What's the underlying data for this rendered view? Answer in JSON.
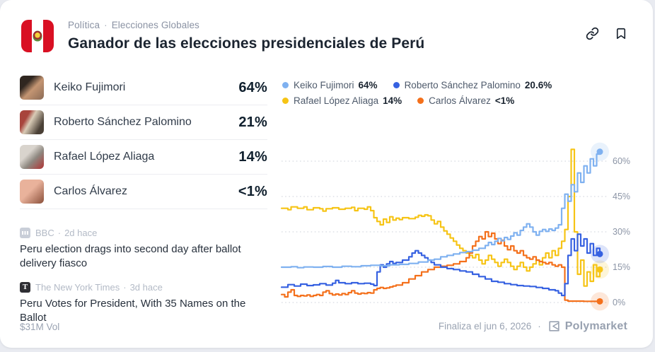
{
  "header": {
    "breadcrumb": {
      "category": "Política",
      "separator": "·",
      "subcategory": "Elecciones Globales"
    },
    "title": "Ganador de las elecciones presidenciales de Perú",
    "flag_icon": "peru-flag"
  },
  "actions": {
    "link_icon": "link-icon",
    "bookmark_icon": "bookmark-icon"
  },
  "outcomes": [
    {
      "name": "Keiko Fujimori",
      "value": "64%"
    },
    {
      "name": "Roberto Sánchez Palomino",
      "value": "21%"
    },
    {
      "name": "Rafael López Aliaga",
      "value": "14%"
    },
    {
      "name": "Carlos Álvarez",
      "value": "<1%"
    }
  ],
  "news": [
    {
      "source": "BBC",
      "separator": "·",
      "time": "2d hace",
      "logo": "bbc-logo",
      "headline": "Peru election drags into second day after ballot delivery fiasco"
    },
    {
      "source": "The New York Times",
      "separator": "·",
      "time": "3d hace",
      "logo": "nyt-logo",
      "logo_glyph": "T",
      "headline": "Peru Votes for President, With 35 Names on the Ballot"
    }
  ],
  "legend": [
    {
      "name": "Keiko Fujimori",
      "value": "64%",
      "color": "#7fb1f0"
    },
    {
      "name": "Roberto Sánchez Palomino",
      "value": "20.6%",
      "color": "#3661e1"
    },
    {
      "name": "Rafael López Aliaga",
      "value": "14%",
      "color": "#f6c415"
    },
    {
      "name": "Carlos Álvarez",
      "value": "<1%",
      "color": "#f4701b"
    }
  ],
  "chart_data": {
    "type": "line",
    "title": "",
    "xlabel": "",
    "ylabel": "",
    "x_axis": {
      "labels_visible": false,
      "range": "market lifetime to present"
    },
    "ylim": [
      0,
      70
    ],
    "grid": "dotted-horizontal",
    "legend_position": "top-left",
    "yticks": [
      {
        "value": 60,
        "label": "60%"
      },
      {
        "value": 45,
        "label": "45%"
      },
      {
        "value": 30,
        "label": "30%"
      },
      {
        "value": 15,
        "label": "15%"
      },
      {
        "value": 0,
        "label": "0%"
      }
    ],
    "series": [
      {
        "name": "Keiko Fujimori",
        "color": "#7fb1f0",
        "final": 64,
        "z": 4,
        "points": [
          [
            0,
            15
          ],
          [
            3,
            15.2
          ],
          [
            5,
            14.8
          ],
          [
            7,
            15.1
          ],
          [
            10,
            15
          ],
          [
            13,
            15.3
          ],
          [
            16,
            15
          ],
          [
            19,
            15.4
          ],
          [
            22,
            15.2
          ],
          [
            25,
            15.6
          ],
          [
            28,
            15.8
          ],
          [
            31,
            15.6
          ],
          [
            34,
            16
          ],
          [
            37,
            16.2
          ],
          [
            40,
            16.6
          ],
          [
            43,
            17.2
          ],
          [
            46,
            18
          ],
          [
            48,
            18.4
          ],
          [
            50,
            19.4
          ],
          [
            52,
            20
          ],
          [
            54,
            20.6
          ],
          [
            56,
            21.2
          ],
          [
            58,
            21.6
          ],
          [
            60,
            22.2
          ],
          [
            62,
            23
          ],
          [
            64,
            24.2
          ],
          [
            65,
            25.5
          ],
          [
            66,
            24.6
          ],
          [
            67,
            26
          ],
          [
            68,
            27.2
          ],
          [
            69,
            26.2
          ],
          [
            70,
            27.6
          ],
          [
            71,
            26.8
          ],
          [
            72,
            28.2
          ],
          [
            73,
            29.6
          ],
          [
            74,
            28.6
          ],
          [
            75,
            30.6
          ],
          [
            76,
            32
          ],
          [
            77,
            33.4
          ],
          [
            78,
            32
          ],
          [
            79,
            30
          ],
          [
            80,
            28.6
          ],
          [
            81,
            30.2
          ],
          [
            82,
            31
          ],
          [
            83,
            30.2
          ],
          [
            84,
            31.2
          ],
          [
            85,
            30.6
          ],
          [
            86,
            31.6
          ],
          [
            87,
            33
          ],
          [
            88,
            40
          ],
          [
            89,
            46
          ],
          [
            90,
            43
          ],
          [
            91,
            50
          ],
          [
            92,
            47
          ],
          [
            93,
            55
          ],
          [
            94,
            51
          ],
          [
            95,
            58
          ],
          [
            96,
            55
          ],
          [
            97,
            61
          ],
          [
            98,
            58
          ],
          [
            99,
            63
          ],
          [
            100,
            64
          ]
        ]
      },
      {
        "name": "Roberto Sánchez Palomino",
        "color": "#3661e1",
        "final": 20.6,
        "z": 3,
        "points": [
          [
            0,
            6.5
          ],
          [
            2,
            7.6
          ],
          [
            4,
            7
          ],
          [
            6,
            7.8
          ],
          [
            8,
            7.2
          ],
          [
            10,
            7.5
          ],
          [
            12,
            8
          ],
          [
            14,
            7.4
          ],
          [
            16,
            8.2
          ],
          [
            17,
            9.4
          ],
          [
            18,
            8.4
          ],
          [
            20,
            8
          ],
          [
            22,
            8.4
          ],
          [
            24,
            8
          ],
          [
            26,
            8.2
          ],
          [
            28,
            7.8
          ],
          [
            29,
            7.2
          ],
          [
            30,
            13
          ],
          [
            31,
            16
          ],
          [
            32,
            15
          ],
          [
            33,
            16.4
          ],
          [
            34,
            17.4
          ],
          [
            35,
            16.6
          ],
          [
            36,
            17
          ],
          [
            38,
            18
          ],
          [
            40,
            19.4
          ],
          [
            41,
            21
          ],
          [
            42,
            22
          ],
          [
            43,
            21
          ],
          [
            44,
            20
          ],
          [
            45,
            19
          ],
          [
            46,
            18
          ],
          [
            47,
            17
          ],
          [
            48,
            16
          ],
          [
            50,
            15
          ],
          [
            52,
            14.4
          ],
          [
            54,
            14
          ],
          [
            56,
            13.4
          ],
          [
            58,
            13
          ],
          [
            60,
            12
          ],
          [
            62,
            11
          ],
          [
            64,
            10
          ],
          [
            66,
            9
          ],
          [
            68,
            8.6
          ],
          [
            70,
            8
          ],
          [
            72,
            7.6
          ],
          [
            74,
            7.2
          ],
          [
            76,
            7
          ],
          [
            78,
            6.8
          ],
          [
            80,
            6.4
          ],
          [
            82,
            6
          ],
          [
            84,
            5.4
          ],
          [
            86,
            5
          ],
          [
            87,
            4
          ],
          [
            88,
            3
          ],
          [
            89,
            8
          ],
          [
            90,
            20
          ],
          [
            91,
            27
          ],
          [
            92,
            22
          ],
          [
            93,
            29
          ],
          [
            94,
            24
          ],
          [
            95,
            27
          ],
          [
            96,
            21
          ],
          [
            97,
            25
          ],
          [
            98,
            20
          ],
          [
            99,
            23
          ],
          [
            100,
            20.6
          ]
        ]
      },
      {
        "name": "Rafael López Aliaga",
        "color": "#f6c415",
        "final": 14,
        "z": 1,
        "points": [
          [
            0,
            40
          ],
          [
            2,
            39.4
          ],
          [
            3,
            40.6
          ],
          [
            5,
            40
          ],
          [
            7,
            40.6
          ],
          [
            8,
            39.4
          ],
          [
            10,
            40.2
          ],
          [
            12,
            39.8
          ],
          [
            13,
            38.8
          ],
          [
            14,
            39.8
          ],
          [
            16,
            40.2
          ],
          [
            18,
            39.6
          ],
          [
            20,
            40
          ],
          [
            22,
            40.4
          ],
          [
            23,
            39
          ],
          [
            24,
            40
          ],
          [
            26,
            39.6
          ],
          [
            27,
            40.6
          ],
          [
            28,
            39
          ],
          [
            29,
            36
          ],
          [
            30,
            34.4
          ],
          [
            31,
            33
          ],
          [
            32,
            35.4
          ],
          [
            33,
            34
          ],
          [
            34,
            36.4
          ],
          [
            35,
            35
          ],
          [
            36,
            35.8
          ],
          [
            37,
            35.2
          ],
          [
            38,
            36
          ],
          [
            40,
            35.6
          ],
          [
            42,
            36.2
          ],
          [
            43,
            37
          ],
          [
            44,
            36.6
          ],
          [
            45,
            37.2
          ],
          [
            46,
            36.8
          ],
          [
            47,
            35
          ],
          [
            48,
            33.4
          ],
          [
            49,
            34.4
          ],
          [
            50,
            32
          ],
          [
            51,
            30.4
          ],
          [
            52,
            29
          ],
          [
            53,
            27.4
          ],
          [
            54,
            26
          ],
          [
            55,
            24.4
          ],
          [
            56,
            23
          ],
          [
            57,
            22
          ],
          [
            58,
            21
          ],
          [
            59,
            20
          ],
          [
            60,
            19
          ],
          [
            61,
            20.4
          ],
          [
            62,
            18
          ],
          [
            63,
            16.4
          ],
          [
            64,
            18
          ],
          [
            65,
            20
          ],
          [
            66,
            18.4
          ],
          [
            67,
            17
          ],
          [
            68,
            15.4
          ],
          [
            69,
            17
          ],
          [
            70,
            18.4
          ],
          [
            71,
            17
          ],
          [
            72,
            15.4
          ],
          [
            73,
            14
          ],
          [
            74,
            15.4
          ],
          [
            75,
            17
          ],
          [
            76,
            15
          ],
          [
            77,
            13.4
          ],
          [
            78,
            15
          ],
          [
            79,
            16.4
          ],
          [
            80,
            18
          ],
          [
            81,
            16
          ],
          [
            82,
            19
          ],
          [
            83,
            21
          ],
          [
            84,
            19
          ],
          [
            85,
            22
          ],
          [
            86,
            20
          ],
          [
            87,
            23
          ],
          [
            88,
            26
          ],
          [
            89,
            31
          ],
          [
            90,
            45
          ],
          [
            91,
            65
          ],
          [
            92,
            30
          ],
          [
            93,
            12
          ],
          [
            94,
            18
          ],
          [
            95,
            7
          ],
          [
            96,
            13
          ],
          [
            97,
            9
          ],
          [
            98,
            16
          ],
          [
            99,
            11
          ],
          [
            100,
            14
          ]
        ]
      },
      {
        "name": "Carlos Álvarez",
        "color": "#f4701b",
        "final": 0.5,
        "z": 2,
        "points": [
          [
            0,
            3.4
          ],
          [
            1,
            2.4
          ],
          [
            2,
            4.4
          ],
          [
            3,
            5.4
          ],
          [
            4,
            3
          ],
          [
            5,
            2.6
          ],
          [
            6,
            3
          ],
          [
            7,
            2.8
          ],
          [
            8,
            3.2
          ],
          [
            9,
            2.6
          ],
          [
            10,
            3
          ],
          [
            11,
            3.4
          ],
          [
            12,
            3
          ],
          [
            13,
            4.4
          ],
          [
            14,
            5
          ],
          [
            15,
            3.8
          ],
          [
            16,
            3.2
          ],
          [
            17,
            3.6
          ],
          [
            18,
            3.2
          ],
          [
            19,
            3.8
          ],
          [
            20,
            3.4
          ],
          [
            21,
            4.2
          ],
          [
            22,
            5
          ],
          [
            23,
            4
          ],
          [
            24,
            3.6
          ],
          [
            25,
            4
          ],
          [
            26,
            3.8
          ],
          [
            27,
            4.2
          ],
          [
            28,
            4
          ],
          [
            29,
            5.4
          ],
          [
            30,
            6
          ],
          [
            31,
            6.4
          ],
          [
            32,
            6
          ],
          [
            33,
            6.2
          ],
          [
            34,
            6.6
          ],
          [
            35,
            7
          ],
          [
            36,
            7.4
          ],
          [
            38,
            8.4
          ],
          [
            40,
            10
          ],
          [
            42,
            11.4
          ],
          [
            44,
            13
          ],
          [
            46,
            14
          ],
          [
            48,
            15
          ],
          [
            50,
            15.4
          ],
          [
            52,
            15.8
          ],
          [
            54,
            16.4
          ],
          [
            56,
            17.4
          ],
          [
            58,
            19
          ],
          [
            59,
            21
          ],
          [
            60,
            24
          ],
          [
            61,
            26
          ],
          [
            62,
            28
          ],
          [
            63,
            27
          ],
          [
            64,
            30
          ],
          [
            65,
            28
          ],
          [
            66,
            29.4
          ],
          [
            67,
            27
          ],
          [
            68,
            25
          ],
          [
            69,
            26.4
          ],
          [
            70,
            24
          ],
          [
            71,
            22.4
          ],
          [
            72,
            24
          ],
          [
            73,
            22
          ],
          [
            74,
            21
          ],
          [
            75,
            22
          ],
          [
            76,
            20
          ],
          [
            77,
            19
          ],
          [
            78,
            18.4
          ],
          [
            79,
            19.4
          ],
          [
            80,
            18
          ],
          [
            81,
            17.4
          ],
          [
            82,
            17
          ],
          [
            83,
            16.4
          ],
          [
            84,
            17
          ],
          [
            85,
            16
          ],
          [
            86,
            15.4
          ],
          [
            87,
            16
          ],
          [
            88,
            15
          ],
          [
            89,
            1
          ],
          [
            90,
            0.6
          ],
          [
            95,
            0.5
          ],
          [
            100,
            0.5
          ]
        ]
      }
    ]
  },
  "footer": {
    "volume": "$31M Vol",
    "ends": "Finaliza el jun 6, 2026",
    "separator": "·",
    "brand": "Polymarket",
    "brand_logo": "polymarket-logo"
  }
}
